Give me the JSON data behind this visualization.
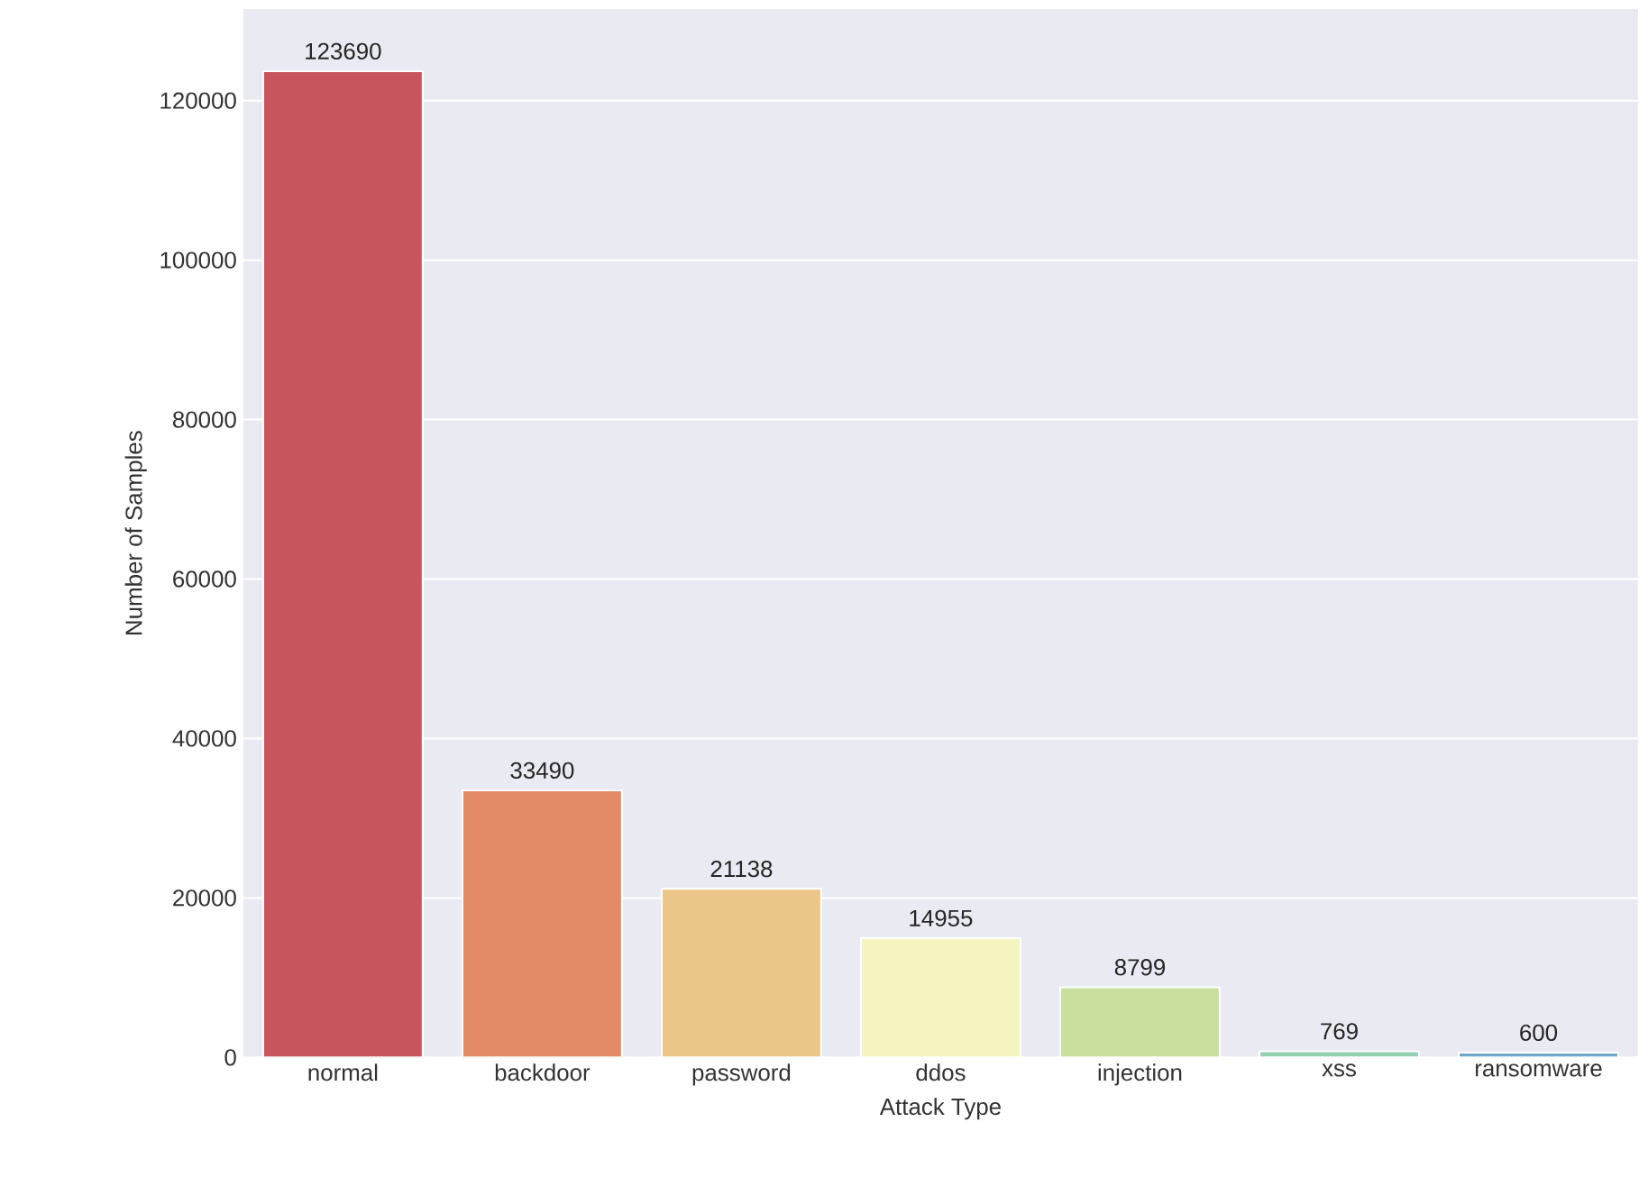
{
  "chart_data": {
    "type": "bar",
    "xlabel": "Attack Type",
    "ylabel": "Number of Samples",
    "categories": [
      "normal",
      "backdoor",
      "password",
      "ddos",
      "injection",
      "xss",
      "ransomware"
    ],
    "values": [
      123690,
      33490,
      21138,
      14955,
      8799,
      769,
      600
    ],
    "colors": [
      "#c8545e",
      "#e38a66",
      "#ecc589",
      "#f5f4c1",
      "#c9df9e",
      "#96d0b3",
      "#6ea8c8"
    ],
    "ylim": [
      0,
      131500
    ],
    "yticks": [
      0,
      20000,
      40000,
      60000,
      80000,
      100000,
      120000
    ],
    "grid": "y",
    "data_labels": true
  }
}
